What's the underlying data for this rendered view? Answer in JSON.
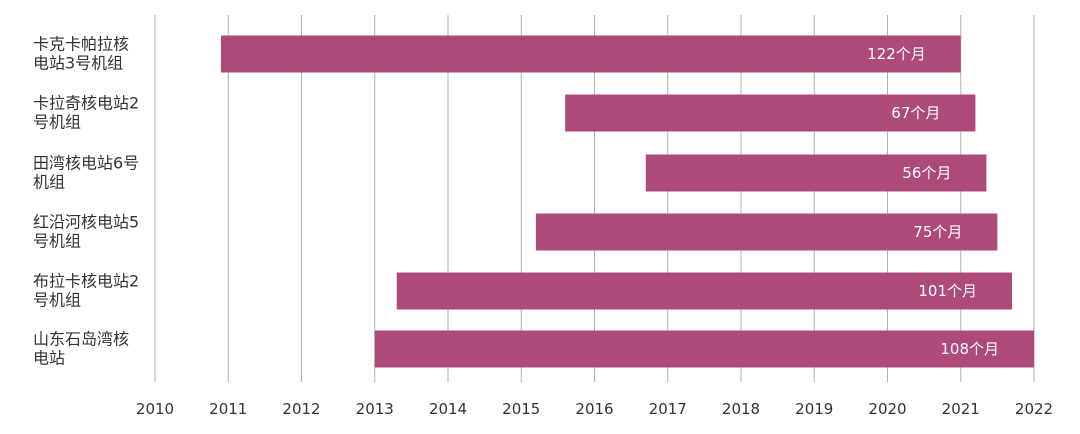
{
  "chart_data": {
    "type": "bar",
    "orientation": "horizontal",
    "bar_type": "range",
    "title": "",
    "xlabel": "",
    "ylabel": "",
    "x_axis": {
      "ticks": [
        2010,
        2011,
        2012,
        2013,
        2014,
        2015,
        2016,
        2017,
        2018,
        2019,
        2020,
        2021,
        2022
      ],
      "range": [
        2010,
        2022
      ],
      "grid": true
    },
    "categories": [
      [
        "卡克卡帕拉核",
        "电站3号机组"
      ],
      [
        "卡拉奇核电站2",
        "号机组"
      ],
      [
        "田湾核电站6号",
        "机组"
      ],
      [
        "红沿河核电站5",
        "号机组"
      ],
      [
        "布拉卡核电站2",
        "号机组"
      ],
      [
        "山东石岛湾核",
        "电站"
      ]
    ],
    "series": [
      {
        "color": "#AE4A78",
        "start": [
          2010.9,
          2015.6,
          2016.7,
          2015.2,
          2013.3,
          2013.0
        ],
        "end": [
          2021.0,
          2021.2,
          2021.35,
          2021.5,
          2021.7,
          2022.0
        ],
        "values": [
          122,
          67,
          56,
          75,
          101,
          108
        ],
        "labels": [
          "122个月",
          "67个月",
          "56个月",
          "75个月",
          "101个月",
          "108个月"
        ]
      }
    ],
    "legend": "none"
  }
}
